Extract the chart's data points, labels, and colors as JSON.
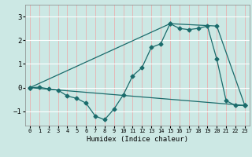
{
  "title": "",
  "xlabel": "Humidex (Indice chaleur)",
  "bg_color": "#cce8e4",
  "line_color": "#1a6b6b",
  "grid_color_h": "#ffffff",
  "grid_color_v": "#e8b0b0",
  "xlim": [
    -0.5,
    23.5
  ],
  "ylim": [
    -1.6,
    3.5
  ],
  "yticks": [
    -1,
    0,
    1,
    2,
    3
  ],
  "xticks": [
    0,
    1,
    2,
    3,
    4,
    5,
    6,
    7,
    8,
    9,
    10,
    11,
    12,
    13,
    14,
    15,
    16,
    17,
    18,
    19,
    20,
    21,
    22,
    23
  ],
  "series1_x": [
    0,
    1,
    2,
    3,
    4,
    5,
    6,
    7,
    8,
    9,
    10,
    11,
    12,
    13,
    14,
    15,
    16,
    17,
    18,
    19,
    20,
    21,
    22,
    23
  ],
  "series1_y": [
    0.0,
    0.02,
    -0.05,
    -0.1,
    -0.35,
    -0.45,
    -0.65,
    -1.2,
    -1.35,
    -0.9,
    -0.3,
    0.5,
    0.85,
    1.7,
    1.85,
    2.7,
    2.5,
    2.45,
    2.5,
    2.6,
    1.2,
    -0.55,
    -0.75,
    -0.75
  ],
  "series2_x": [
    0,
    23
  ],
  "series2_y": [
    0.0,
    -0.75
  ],
  "series3_x": [
    0,
    15,
    20,
    23
  ],
  "series3_y": [
    0.0,
    2.7,
    2.6,
    -0.75
  ]
}
